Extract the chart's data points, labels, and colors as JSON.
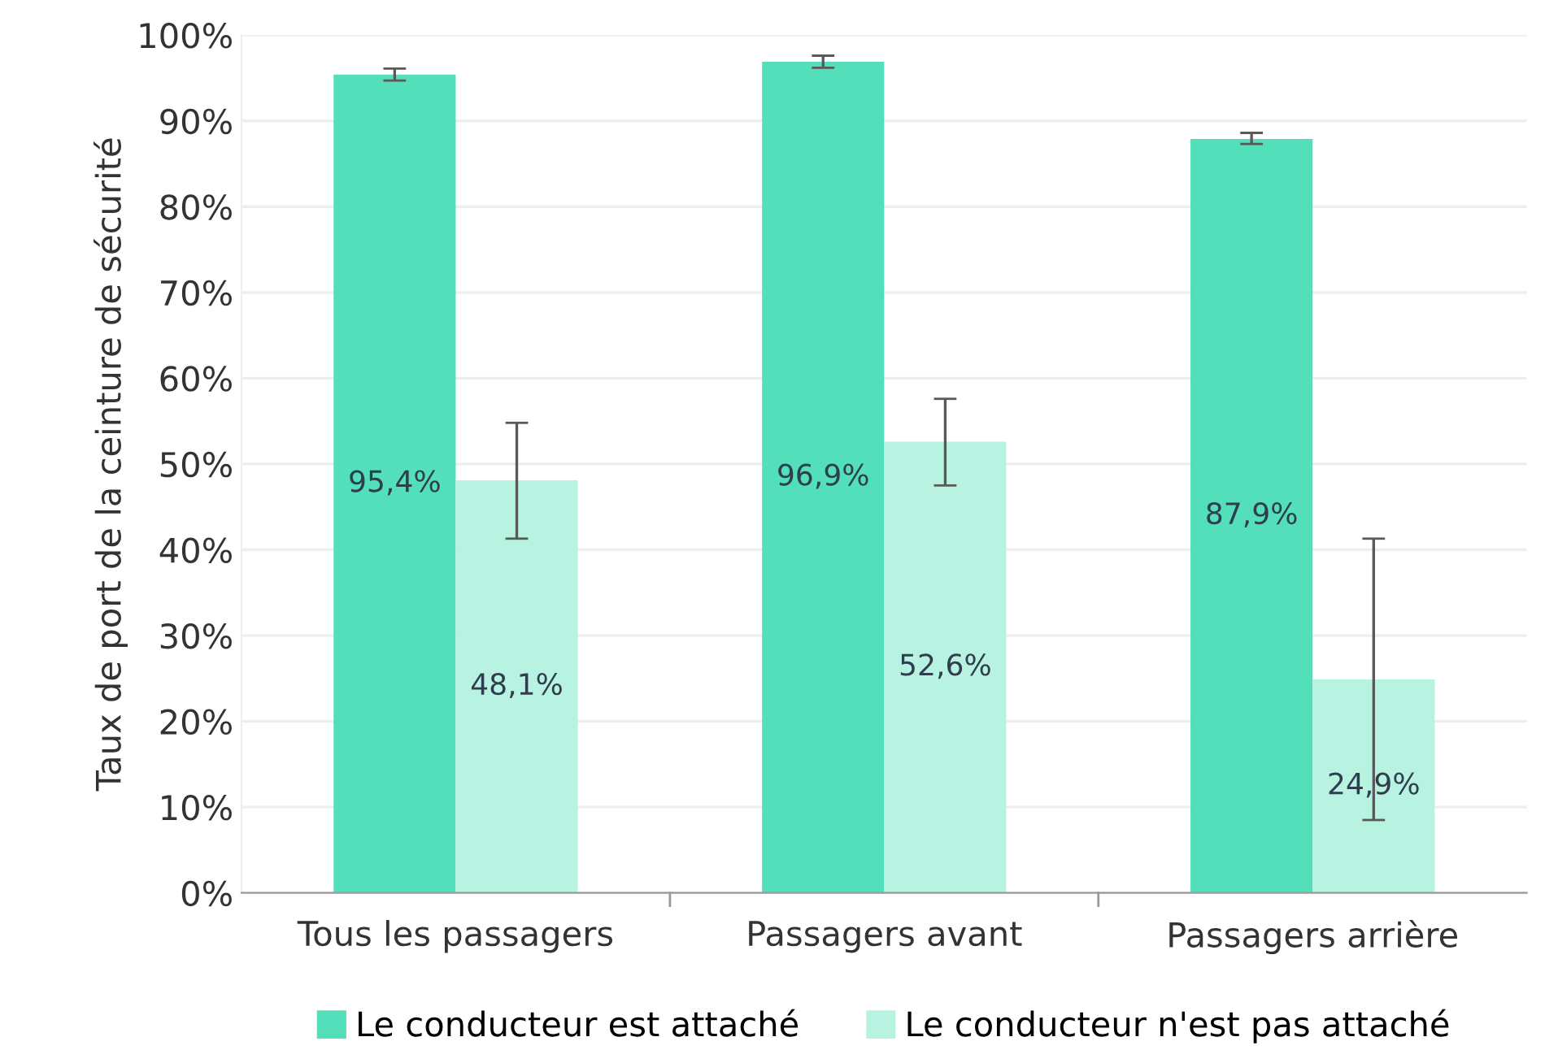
{
  "chart_data": {
    "type": "bar",
    "ylabel": "Taux de port de la ceinture de sécurité",
    "categories": [
      "Tous les passagers",
      "Passagers avant",
      "Passagers arrière"
    ],
    "series": [
      {
        "name": "Le conducteur est attaché",
        "color": "#52dfb9",
        "values": [
          95.4,
          96.9,
          87.9
        ],
        "errors": [
          [
            94.7,
            96.1
          ],
          [
            96.2,
            97.6
          ],
          [
            87.3,
            88.6
          ]
        ],
        "value_labels": [
          "95,4%",
          "96,9%",
          "87,9%"
        ]
      },
      {
        "name": "Le conducteur n'est pas attaché",
        "color": "#b8f2e0",
        "values": [
          48.1,
          52.6,
          24.9
        ],
        "errors": [
          [
            41.3,
            54.8
          ],
          [
            47.5,
            57.6
          ],
          [
            8.5,
            41.3
          ]
        ],
        "value_labels": [
          "48,1%",
          "52,6%",
          "24,9%"
        ]
      }
    ],
    "ylim": [
      0,
      100
    ],
    "yticks": [
      {
        "value": 0,
        "label": "0%"
      },
      {
        "value": 10,
        "label": "10%"
      },
      {
        "value": 20,
        "label": "20%"
      },
      {
        "value": 30,
        "label": "30%"
      },
      {
        "value": 40,
        "label": "40%"
      },
      {
        "value": 50,
        "label": "50%"
      },
      {
        "value": 60,
        "label": "60%"
      },
      {
        "value": 70,
        "label": "70%"
      },
      {
        "value": 80,
        "label": "80%"
      },
      {
        "value": 90,
        "label": "90%"
      },
      {
        "value": 100,
        "label": "100%"
      }
    ],
    "grid": "y",
    "legend": "bottom"
  }
}
